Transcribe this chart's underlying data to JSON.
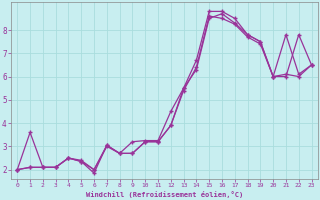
{
  "xlabel": "Windchill (Refroidissement éolien,°C)",
  "bg_color": "#c8eef0",
  "grid_color": "#aadddd",
  "line_color": "#993399",
  "xlim": [
    -0.5,
    23.5
  ],
  "ylim": [
    1.6,
    9.2
  ],
  "yticks": [
    2,
    3,
    4,
    5,
    6,
    7,
    8
  ],
  "xticks": [
    0,
    1,
    2,
    3,
    4,
    5,
    6,
    7,
    8,
    9,
    10,
    11,
    12,
    13,
    14,
    15,
    16,
    17,
    18,
    19,
    20,
    21,
    22,
    23
  ],
  "series1_x": [
    0,
    1,
    2,
    3,
    4,
    5,
    6,
    7,
    8,
    9,
    10,
    11,
    12,
    13,
    14,
    15,
    16,
    17,
    18,
    19,
    20,
    21,
    22,
    23
  ],
  "series1_y": [
    2.0,
    3.6,
    2.1,
    2.1,
    2.5,
    2.4,
    2.0,
    3.05,
    2.7,
    2.7,
    3.2,
    3.2,
    3.9,
    5.5,
    6.7,
    8.8,
    8.8,
    8.5,
    7.8,
    7.5,
    6.0,
    7.8,
    6.1,
    6.5
  ],
  "series2_x": [
    0,
    1,
    2,
    3,
    4,
    5,
    6,
    7,
    8,
    9,
    10,
    11,
    12,
    13,
    14,
    15,
    16,
    17,
    18,
    19,
    20,
    21,
    22,
    23
  ],
  "series2_y": [
    2.0,
    2.1,
    2.1,
    2.1,
    2.5,
    2.35,
    1.85,
    3.05,
    2.7,
    3.2,
    3.25,
    3.25,
    4.5,
    5.5,
    6.3,
    8.5,
    8.7,
    8.3,
    7.8,
    7.5,
    6.0,
    6.1,
    6.0,
    6.5
  ],
  "series3_x": [
    0,
    1,
    2,
    3,
    4,
    5,
    6,
    7,
    8,
    9,
    10,
    11,
    12,
    13,
    14,
    15,
    16,
    17,
    18,
    19,
    20,
    21,
    22,
    23
  ],
  "series3_y": [
    2.0,
    2.1,
    2.1,
    2.1,
    2.5,
    2.35,
    2.0,
    3.0,
    2.7,
    2.7,
    3.2,
    3.2,
    3.9,
    5.4,
    6.4,
    8.6,
    8.5,
    8.25,
    7.7,
    7.4,
    6.0,
    6.0,
    7.8,
    6.5
  ]
}
